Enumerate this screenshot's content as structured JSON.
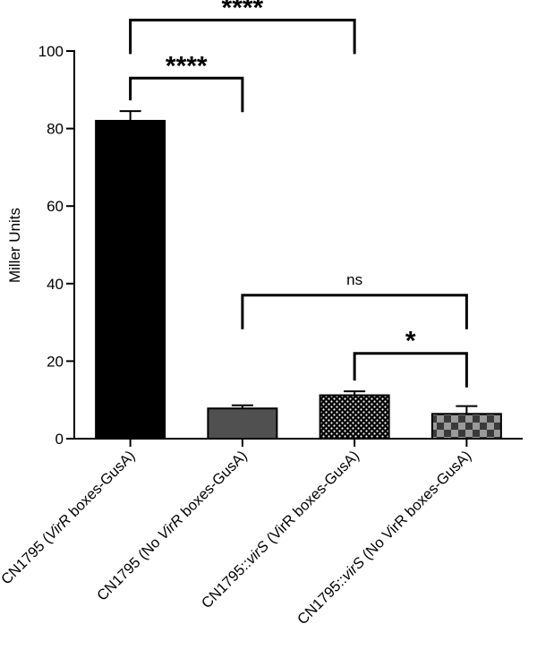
{
  "chart_data": {
    "type": "bar",
    "ylabel": "Miller Units",
    "ylim": [
      0,
      100
    ],
    "yticks": [
      0,
      20,
      40,
      60,
      80,
      100
    ],
    "grid": false,
    "categories": [
      {
        "label_prefix": "CN1795 (",
        "label_italic": "VirR",
        "label_suffix": " boxes-GusA)"
      },
      {
        "label_prefix": "CN1795 (No ",
        "label_italic": "VirR",
        "label_suffix": " boxes-GusA)"
      },
      {
        "label_prefix": "CN1795::",
        "label_italic": "virS",
        "label_suffix": " (VirR boxes-GusA)"
      },
      {
        "label_prefix": "CN1795::",
        "label_italic": "virS",
        "label_suffix": " (No VirR boxes-GusA)"
      }
    ],
    "values": [
      82,
      7.8,
      11.2,
      6.4
    ],
    "errors": [
      2.5,
      0.8,
      1.0,
      2.0
    ],
    "fills": [
      "solid-black",
      "solid-dark-gray",
      "dotted",
      "checkered"
    ],
    "significance": [
      {
        "from": 0,
        "to": 2,
        "label": "****",
        "level": 108
      },
      {
        "from": 0,
        "to": 1,
        "label": "****",
        "level": 93
      },
      {
        "from": 1,
        "to": 3,
        "label": "ns",
        "level": 37
      },
      {
        "from": 2,
        "to": 3,
        "label": "*",
        "level": 22
      }
    ]
  }
}
